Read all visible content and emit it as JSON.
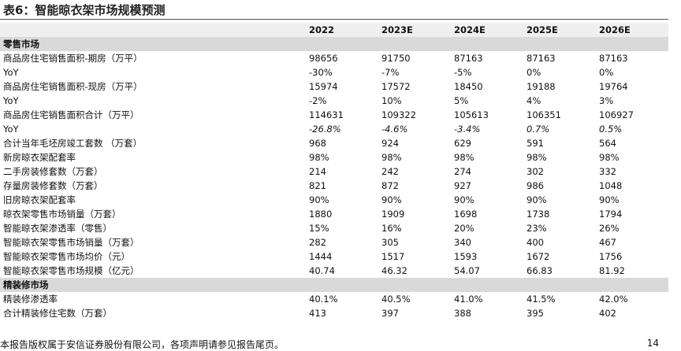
{
  "header": {
    "title": "表6：智能晾衣架市场规模预测"
  },
  "table": {
    "columns": [
      "2022",
      "2023E",
      "2024E",
      "2025E",
      "2026E"
    ],
    "rows": [
      {
        "section": "零售市场"
      },
      {
        "label": "商品房住宅销售面积-期房（万平）",
        "values": [
          "98656",
          "91750",
          "87163",
          "87163",
          "87163"
        ]
      },
      {
        "label": "YoY",
        "values": [
          "-30%",
          "-7%",
          "-5%",
          "0%",
          "0%"
        ]
      },
      {
        "label": "商品房住宅销售面积-现房（万平）",
        "values": [
          "15974",
          "17572",
          "18450",
          "19188",
          "19764"
        ]
      },
      {
        "label": "YoY",
        "values": [
          "-2%",
          "10%",
          "5%",
          "4%",
          "3%"
        ]
      },
      {
        "label": "商品房住宅销售面积合计（万平）",
        "values": [
          "114631",
          "109322",
          "105613",
          "106351",
          "106927"
        ]
      },
      {
        "label": "YoY",
        "values": [
          "-26.8%",
          "-4.6%",
          "-3.4%",
          "0.7%",
          "0.5%"
        ]
      },
      {
        "label": "合计当年毛坯房竣工套数 （万套）",
        "values": [
          "968",
          "924",
          "629",
          "591",
          "564"
        ]
      },
      {
        "label": "新房晾衣架配套率",
        "values": [
          "98%",
          "98%",
          "98%",
          "98%",
          "98%"
        ]
      },
      {
        "label": "二手房装修套数（万套）",
        "values": [
          "214",
          "242",
          "274",
          "302",
          "332"
        ]
      },
      {
        "label": "存量房装修套数（万套）",
        "values": [
          "821",
          "872",
          "927",
          "986",
          "1048"
        ]
      },
      {
        "label": "旧房晾衣架配套率",
        "values": [
          "90%",
          "90%",
          "90%",
          "90%",
          "90%"
        ]
      },
      {
        "label": "晾衣架零售市场销量（万套）",
        "values": [
          "1880",
          "1909",
          "1698",
          "1738",
          "1794"
        ]
      },
      {
        "label": "智能晾衣架渗透率（零售）",
        "values": [
          "15%",
          "16%",
          "20%",
          "23%",
          "26%"
        ]
      },
      {
        "label": "智能晾衣架零售市场销量（万套）",
        "values": [
          "282",
          "305",
          "340",
          "400",
          "467"
        ]
      },
      {
        "label": "智能晾衣架零售市场均价（元）",
        "values": [
          "1444",
          "1517",
          "1593",
          "1672",
          "1756"
        ]
      },
      {
        "label": "智能晾衣架零售市场规模（亿元）",
        "values": [
          "40.74",
          "46.32",
          "54.07",
          "66.83",
          "81.92"
        ]
      },
      {
        "section": "精装修市场"
      },
      {
        "label": "精装修渗透率",
        "values": [
          "40.1%",
          "40.5%",
          "41.0%",
          "41.5%",
          "42.0%"
        ]
      },
      {
        "label": "合计精装修住宅数（万套）",
        "values": [
          "413",
          "397",
          "388",
          "395",
          "402"
        ]
      }
    ]
  },
  "footer": {
    "disclaimer": "本报告版权属于安信证券股份有限公司，各项声明请参见报告尾页。",
    "page": "14"
  }
}
